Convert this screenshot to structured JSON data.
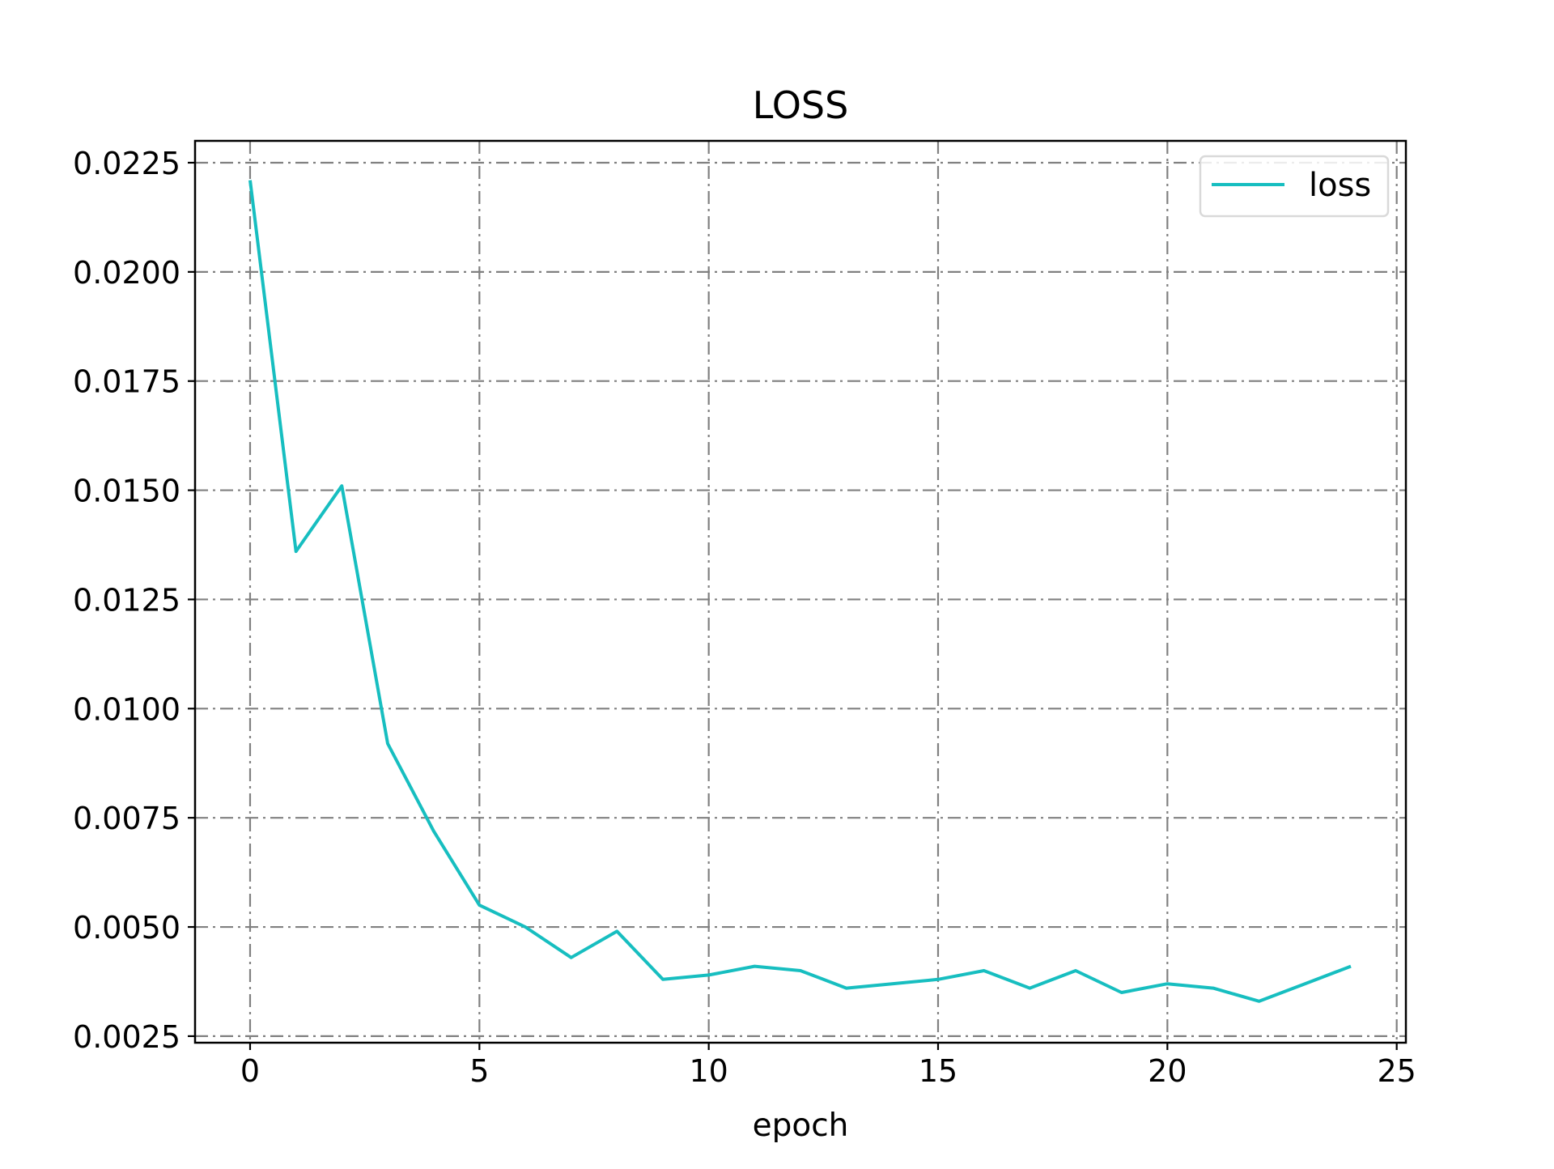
{
  "chart_data": {
    "type": "line",
    "title": "LOSS",
    "xlabel": "epoch",
    "ylabel": "",
    "xlim": [
      -1.2,
      25.2
    ],
    "ylim": [
      0.00235,
      0.023
    ],
    "xticks": [
      0,
      5,
      10,
      15,
      20,
      25
    ],
    "xtick_labels": [
      "0",
      "5",
      "10",
      "15",
      "20",
      "25"
    ],
    "yticks": [
      0.0025,
      0.005,
      0.0075,
      0.01,
      0.0125,
      0.015,
      0.0175,
      0.02,
      0.0225
    ],
    "ytick_labels": [
      "0.0025",
      "0.0050",
      "0.0075",
      "0.0100",
      "0.0125",
      "0.0150",
      "0.0175",
      "0.0200",
      "0.0225"
    ],
    "grid": true,
    "grid_style": "dashdot",
    "legend_position": "top-right",
    "series": [
      {
        "name": "loss",
        "color": "#17bec0",
        "x": [
          0,
          1,
          2,
          3,
          4,
          5,
          6,
          7,
          8,
          9,
          10,
          11,
          12,
          13,
          14,
          15,
          16,
          17,
          18,
          19,
          20,
          21,
          22,
          23,
          24
        ],
        "y": [
          0.0221,
          0.0136,
          0.0151,
          0.0092,
          0.0072,
          0.0055,
          0.005,
          0.0043,
          0.0049,
          0.0038,
          0.0039,
          0.0041,
          0.004,
          0.0036,
          0.0037,
          0.0038,
          0.004,
          0.0036,
          0.004,
          0.0035,
          0.0037,
          0.0036,
          0.0033,
          0.0037,
          0.0041
        ]
      }
    ]
  },
  "colors": {
    "grid": "#808080",
    "axes": "#000000",
    "legend_border": "#d9d9d9"
  }
}
